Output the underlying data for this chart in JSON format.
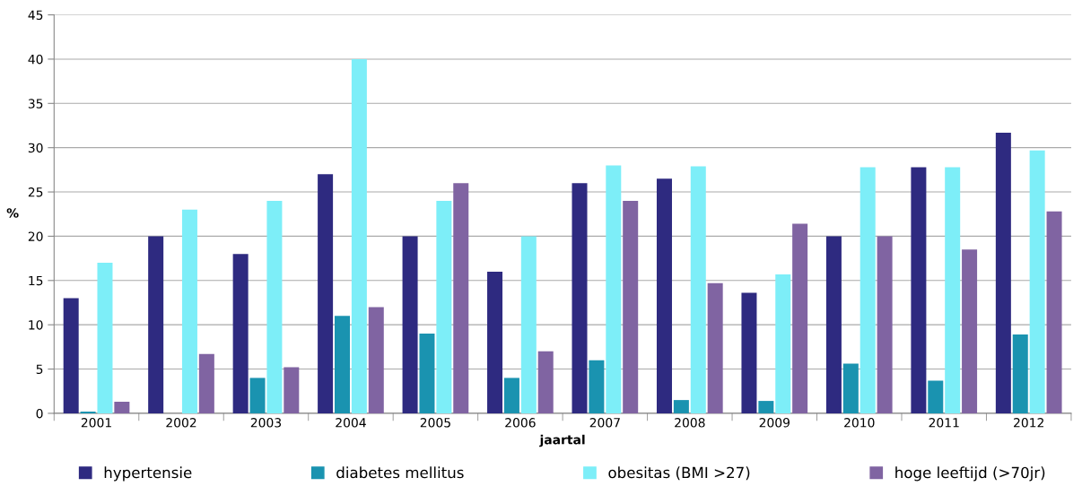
{
  "chart_data": {
    "type": "bar",
    "xlabel": "jaartal",
    "ylabel": "%",
    "categories": [
      "2001",
      "2002",
      "2003",
      "2004",
      "2005",
      "2006",
      "2007",
      "2008",
      "2009",
      "2010",
      "2011",
      "2012"
    ],
    "series": [
      {
        "name": "hypertensie",
        "color": "#2e2a80",
        "values": [
          13,
          20,
          18,
          27,
          20,
          16,
          26,
          26.5,
          13.6,
          20,
          27.8,
          31.7
        ]
      },
      {
        "name": "diabetes mellitus",
        "color": "#1a93b0",
        "values": [
          0.2,
          null,
          4,
          11,
          9,
          4,
          6,
          1.5,
          1.4,
          5.6,
          3.7,
          8.9
        ]
      },
      {
        "name": "obesitas (BMI >27)",
        "color": "#7deef8",
        "values": [
          17,
          23,
          24,
          40,
          24,
          20,
          28,
          27.9,
          15.7,
          27.8,
          27.8,
          29.7
        ]
      },
      {
        "name": "hoge leeftijd (>70jr)",
        "color": "#8064a2",
        "values": [
          1.3,
          6.7,
          5.2,
          12,
          26,
          7,
          24,
          14.7,
          21.4,
          20,
          18.5,
          22.8
        ]
      }
    ],
    "ylim": [
      0,
      45
    ],
    "yticks": [
      0,
      5,
      10,
      15,
      20,
      25,
      30,
      35,
      40,
      45
    ],
    "grid": "y",
    "legend": "bottom"
  }
}
